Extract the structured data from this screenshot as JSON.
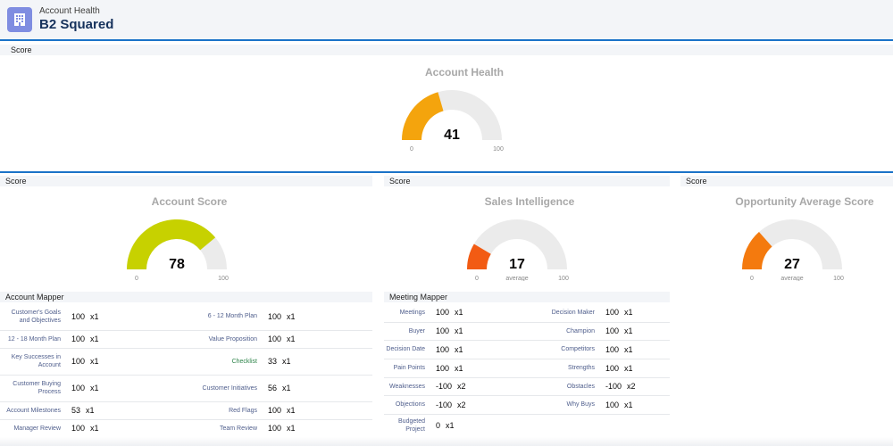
{
  "header": {
    "subtitle": "Account Health",
    "title": "B2 Squared",
    "icon": "building-icon"
  },
  "top": {
    "section_label": "Score",
    "gauge": {
      "title": "Account Health",
      "value": "41",
      "fraction": 0.41,
      "min": "0",
      "max": "100",
      "color": "#f4a40d"
    }
  },
  "panels": [
    {
      "section_label": "Score",
      "gauge": {
        "title": "Account Score",
        "value": "78",
        "fraction": 0.78,
        "min": "0",
        "max": "100",
        "sub": "",
        "color": "#c7d100"
      }
    },
    {
      "section_label": "Score",
      "gauge": {
        "title": "Sales Intelligence",
        "value": "17",
        "fraction": 0.17,
        "min": "0",
        "max": "100",
        "sub": "average",
        "color": "#f25b13"
      }
    },
    {
      "section_label": "Score",
      "gauge": {
        "title": "Opportunity Average Score",
        "value": "27",
        "fraction": 0.27,
        "min": "0",
        "max": "100",
        "sub": "average",
        "color": "#f47a0e"
      }
    }
  ],
  "account_mapper": {
    "title": "Account Mapper",
    "rows": [
      {
        "l1": "Customer's Goals and Objectives",
        "s1": "100",
        "m1": "x1",
        "l2": "6 - 12 Month Plan",
        "s2": "100",
        "m2": "x1"
      },
      {
        "l1": "12 - 18 Month Plan",
        "s1": "100",
        "m1": "x1",
        "l2": "Value Proposition",
        "s2": "100",
        "m2": "x1"
      },
      {
        "l1": "Key Successes in Account",
        "s1": "100",
        "m1": "x1",
        "l2": "Checklist",
        "s2": "33",
        "m2": "x1"
      },
      {
        "l1": "Customer Buying Process",
        "s1": "100",
        "m1": "x1",
        "l2": "Customer Initiatives",
        "s2": "56",
        "m2": "x1"
      },
      {
        "l1": "Account Milestones",
        "s1": "53",
        "m1": "x1",
        "l2": "Red Flags",
        "s2": "100",
        "m2": "x1"
      },
      {
        "l1": "Manager Review",
        "s1": "100",
        "m1": "x1",
        "l2": "Team Review",
        "s2": "100",
        "m2": "x1"
      }
    ]
  },
  "meeting_mapper": {
    "title": "Meeting Mapper",
    "rows": [
      {
        "l1": "Meetings",
        "s1": "100",
        "m1": "x1",
        "l2": "Decision Maker",
        "s2": "100",
        "m2": "x1"
      },
      {
        "l1": "Buyer",
        "s1": "100",
        "m1": "x1",
        "l2": "Champion",
        "s2": "100",
        "m2": "x1"
      },
      {
        "l1": "Decision Date",
        "s1": "100",
        "m1": "x1",
        "l2": "Competitors",
        "s2": "100",
        "m2": "x1"
      },
      {
        "l1": "Pain Points",
        "s1": "100",
        "m1": "x1",
        "l2": "Strengths",
        "s2": "100",
        "m2": "x1"
      },
      {
        "l1": "Weaknesses",
        "s1": "-100",
        "m1": "x2",
        "l2": "Obstacles",
        "s2": "-100",
        "m2": "x2"
      },
      {
        "l1": "Objections",
        "s1": "-100",
        "m1": "x2",
        "l2": "Why Buys",
        "s2": "100",
        "m2": "x1"
      },
      {
        "l1": "Budgeted Project",
        "s1": "0",
        "m1": "x1",
        "l2": "",
        "s2": "",
        "m2": ""
      }
    ]
  },
  "colors": {
    "accent": "#1b73c8",
    "track": "#ebebeb"
  }
}
